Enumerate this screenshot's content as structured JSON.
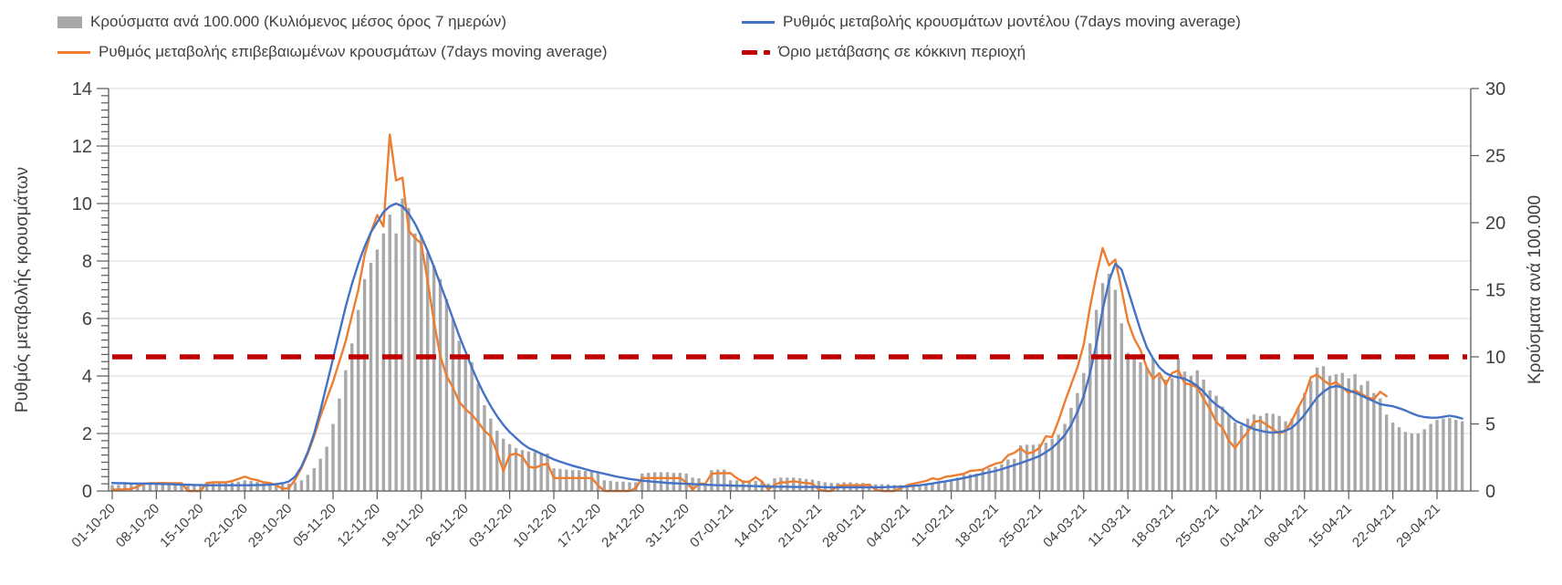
{
  "chart_data": {
    "type": "bar+line combo, dual axis",
    "title": "",
    "cadence": "daily",
    "n_points": 215,
    "start_label": "01-10-20",
    "x_tick_labels": [
      "01-10-20",
      "08-10-20",
      "15-10-20",
      "22-10-20",
      "29-10-20",
      "05-11-20",
      "12-11-20",
      "19-11-20",
      "26-11-20",
      "03-12-20",
      "10-12-20",
      "17-12-20",
      "24-12-20",
      "31-12-20",
      "07-01-21",
      "14-01-21",
      "21-01-21",
      "28-01-21",
      "04-02-21",
      "11-02-21",
      "18-02-21",
      "25-02-21",
      "04-03-21",
      "11-03-21",
      "18-03-21",
      "25-03-21",
      "01-04-21",
      "08-04-21",
      "15-04-21",
      "22-04-21",
      "29-04-21"
    ],
    "left_axis": {
      "label": "Ρυθμός μεταβολής κρουσμάτων",
      "min": 0,
      "max": 14,
      "major_step": 2,
      "minor_step": 0.25,
      "ticks": [
        0,
        2,
        4,
        6,
        8,
        10,
        12,
        14
      ]
    },
    "right_axis": {
      "label": "Κρούσματα ανά 100.000",
      "min": 0,
      "max": 30,
      "major_step": 5,
      "ticks": [
        0,
        5,
        10,
        15,
        20,
        25,
        30
      ]
    },
    "grid": "horizontal, at left-axis even values",
    "legend_position": "top",
    "threshold": {
      "label": "Όριο μετάβασης σε κόκκινη περιοχή",
      "value_right_axis": 10,
      "color": "#C00000"
    },
    "colors": {
      "bars": "#A8A8A8",
      "confirmed_rate": "#ED7D31",
      "model_rate": "#4472C4",
      "threshold": "#C00000",
      "grid": "#D9D9D9",
      "axis": "#595959",
      "text": "#404040"
    },
    "series": [
      {
        "name": "Κρούσματα ανά 100.000 (Κυλιόμενος μέσος όρος 7 ημερών)",
        "type": "bar",
        "axis": "right",
        "color": "#A8A8A8",
        "values": [
          0.45,
          0.45,
          0.5,
          0.5,
          0.5,
          0.5,
          0.5,
          0.55,
          0.55,
          0.5,
          0.5,
          0.45,
          0.45,
          0.5,
          0.5,
          0.55,
          0.55,
          0.6,
          0.6,
          0.65,
          0.7,
          0.8,
          0.75,
          0.7,
          0.65,
          0.6,
          0.55,
          0.5,
          0.55,
          0.65,
          0.8,
          1.2,
          1.7,
          2.4,
          3.3,
          5.0,
          6.9,
          9.0,
          11.0,
          13.5,
          15.8,
          17.0,
          18.0,
          19.2,
          20.6,
          19.2,
          21.8,
          21.1,
          19.2,
          19.0,
          17.8,
          16.8,
          15.8,
          14.3,
          12.8,
          11.2,
          10.0,
          9.6,
          8.0,
          6.4,
          5.4,
          4.5,
          3.9,
          3.5,
          3.2,
          3.05,
          2.95,
          2.9,
          2.85,
          2.8,
          1.7,
          1.65,
          1.6,
          1.55,
          1.55,
          1.5,
          1.45,
          1.4,
          0.8,
          0.75,
          0.7,
          0.7,
          0.65,
          0.65,
          1.3,
          1.35,
          1.4,
          1.4,
          1.4,
          1.35,
          1.35,
          1.3,
          1.0,
          0.95,
          0.6,
          1.55,
          1.6,
          1.6,
          0.8,
          0.8,
          0.8,
          0.8,
          0.75,
          0.7,
          0.55,
          0.95,
          1.0,
          1.0,
          1.0,
          0.95,
          0.9,
          0.85,
          0.75,
          0.65,
          0.6,
          0.6,
          0.65,
          0.65,
          0.6,
          0.6,
          0.55,
          0.5,
          0.5,
          0.5,
          0.45,
          0.45,
          0.4,
          0.4,
          0.45,
          0.5,
          0.55,
          0.6,
          0.7,
          0.75,
          1.0,
          1.2,
          1.25,
          1.3,
          1.55,
          1.7,
          1.8,
          2.0,
          2.35,
          2.4,
          3.4,
          3.45,
          3.45,
          3.5,
          3.6,
          3.9,
          4.2,
          5.0,
          6.2,
          7.3,
          8.8,
          11.0,
          13.5,
          15.5,
          16.2,
          15.0,
          12.5,
          10.3,
          9.9,
          9.6,
          9.2,
          9.9,
          8.6,
          8.3,
          8.4,
          9.9,
          8.9,
          8.6,
          9.0,
          8.3,
          7.5,
          7.1,
          6.3,
          5.7,
          5.1,
          4.9,
          5.4,
          5.7,
          5.6,
          5.8,
          5.75,
          5.6,
          5.2,
          5.4,
          6.2,
          7.3,
          8.2,
          9.2,
          9.3,
          8.6,
          8.7,
          8.8,
          8.4,
          8.7,
          7.9,
          8.2,
          7.3,
          6.9,
          5.7,
          5.1,
          4.75,
          4.4,
          4.3,
          4.3,
          4.6,
          5.0,
          5.3,
          5.4,
          5.45,
          5.3,
          5.2
        ]
      },
      {
        "name": "Ρυθμός μεταβολής επιβεβαιωμένων κρουσμάτων (7days moving average)",
        "type": "line",
        "axis": "left",
        "color": "#ED7D31",
        "values": [
          0.05,
          0.05,
          0.06,
          0.07,
          0.15,
          0.25,
          0.27,
          0.27,
          0.28,
          0.27,
          0.27,
          0.27,
          0,
          0,
          0,
          0.28,
          0.3,
          0.3,
          0.3,
          0.35,
          0.42,
          0.5,
          0.42,
          0.38,
          0.3,
          0.28,
          0.2,
          0.08,
          0.1,
          0.4,
          0.8,
          1.3,
          1.9,
          2.6,
          3.2,
          3.8,
          4.5,
          5.2,
          6.1,
          7.0,
          8.2,
          9.0,
          9.6,
          9.2,
          12.4,
          10.8,
          10.9,
          9.05,
          8.8,
          8.6,
          7.3,
          5.9,
          4.7,
          4.0,
          3.6,
          3.1,
          2.85,
          2.65,
          2.4,
          2.1,
          1.9,
          1.35,
          0.7,
          1.25,
          1.3,
          1.2,
          0.85,
          0.8,
          0.9,
          0.95,
          0.45,
          0.45,
          0.45,
          0.45,
          0.45,
          0.45,
          0.45,
          0.2,
          0,
          0,
          0,
          0,
          0,
          0.1,
          0.45,
          0.45,
          0.45,
          0.45,
          0.45,
          0.45,
          0.45,
          0.3,
          0.05,
          0.25,
          0.25,
          0.6,
          0.62,
          0.62,
          0.62,
          0.45,
          0.32,
          0.32,
          0.48,
          0.32,
          0.05,
          0.22,
          0.3,
          0.3,
          0.34,
          0.3,
          0.28,
          0.25,
          0.05,
          0,
          0,
          0.18,
          0.2,
          0.2,
          0.2,
          0.2,
          0.22,
          0.05,
          0,
          0,
          0,
          0.1,
          0.2,
          0.25,
          0.3,
          0.35,
          0.44,
          0.4,
          0.49,
          0.52,
          0.56,
          0.6,
          0.7,
          0.72,
          0.75,
          0.86,
          0.95,
          1.0,
          1.24,
          1.33,
          1.49,
          1.3,
          1.36,
          1.5,
          1.9,
          1.88,
          2.44,
          3.1,
          3.7,
          4.3,
          5.1,
          6.4,
          7.5,
          8.45,
          7.85,
          8.05,
          7.0,
          5.9,
          5.3,
          4.9,
          4.3,
          3.9,
          4.1,
          3.7,
          4.1,
          4.2,
          3.75,
          3.7,
          3.6,
          3.2,
          2.85,
          2.4,
          2.2,
          1.75,
          1.5,
          1.8,
          2.05,
          2.4,
          2.45,
          2.3,
          2.15,
          2.0,
          2.1,
          2.45,
          2.9,
          3.3,
          3.95,
          4.05,
          3.85,
          3.7,
          3.78,
          3.6,
          3.42,
          3.5,
          3.38,
          3.25,
          3.2,
          3.45,
          3.3,
          null,
          null,
          null,
          null,
          null,
          null,
          null,
          null,
          null,
          null,
          null,
          null
        ]
      },
      {
        "name": "Ρυθμός μεταβολής κρουσμάτων μοντέλου (7days moving average)",
        "type": "line",
        "axis": "left",
        "color": "#4472C4",
        "values": [
          0.28,
          0.27,
          0.27,
          0.26,
          0.26,
          0.26,
          0.25,
          0.25,
          0.24,
          0.24,
          0.23,
          0.22,
          0.22,
          0.21,
          0.21,
          0.2,
          0.2,
          0.2,
          0.2,
          0.2,
          0.2,
          0.2,
          0.2,
          0.21,
          0.21,
          0.22,
          0.24,
          0.27,
          0.33,
          0.5,
          0.85,
          1.35,
          2.0,
          2.8,
          3.7,
          4.6,
          5.5,
          6.4,
          7.2,
          7.9,
          8.5,
          9.0,
          9.35,
          9.7,
          9.9,
          10.0,
          9.9,
          9.65,
          9.3,
          8.85,
          8.35,
          7.8,
          7.2,
          6.6,
          6.0,
          5.4,
          4.85,
          4.3,
          3.8,
          3.35,
          2.95,
          2.6,
          2.3,
          2.05,
          1.85,
          1.65,
          1.5,
          1.4,
          1.3,
          1.2,
          1.1,
          1.02,
          0.95,
          0.88,
          0.82,
          0.76,
          0.7,
          0.65,
          0.6,
          0.55,
          0.5,
          0.46,
          0.42,
          0.39,
          0.36,
          0.34,
          0.32,
          0.3,
          0.28,
          0.27,
          0.26,
          0.25,
          0.24,
          0.23,
          0.22,
          0.21,
          0.2,
          0.2,
          0.19,
          0.18,
          0.18,
          0.17,
          0.17,
          0.16,
          0.16,
          0.15,
          0.15,
          0.15,
          0.14,
          0.14,
          0.14,
          0.14,
          0.14,
          0.13,
          0.13,
          0.13,
          0.13,
          0.13,
          0.13,
          0.13,
          0.13,
          0.13,
          0.13,
          0.14,
          0.14,
          0.15,
          0.16,
          0.18,
          0.2,
          0.23,
          0.26,
          0.3,
          0.33,
          0.37,
          0.41,
          0.45,
          0.5,
          0.55,
          0.6,
          0.65,
          0.7,
          0.76,
          0.83,
          0.9,
          0.97,
          1.05,
          1.13,
          1.22,
          1.35,
          1.5,
          1.7,
          1.95,
          2.3,
          2.75,
          3.3,
          4.1,
          5.1,
          6.3,
          7.3,
          7.9,
          7.7,
          7.0,
          6.3,
          5.6,
          5.0,
          4.6,
          4.3,
          4.1,
          4.0,
          3.95,
          3.9,
          3.8,
          3.65,
          3.45,
          3.2,
          3.0,
          2.85,
          2.65,
          2.45,
          2.35,
          2.25,
          2.15,
          2.1,
          2.05,
          2.03,
          2.05,
          2.1,
          2.2,
          2.4,
          2.65,
          2.95,
          3.25,
          3.45,
          3.6,
          3.65,
          3.6,
          3.5,
          3.42,
          3.32,
          3.22,
          3.12,
          3.02,
          2.98,
          2.95,
          2.88,
          2.8,
          2.7,
          2.62,
          2.57,
          2.55,
          2.55,
          2.58,
          2.62,
          2.58,
          2.52
        ]
      }
    ]
  }
}
